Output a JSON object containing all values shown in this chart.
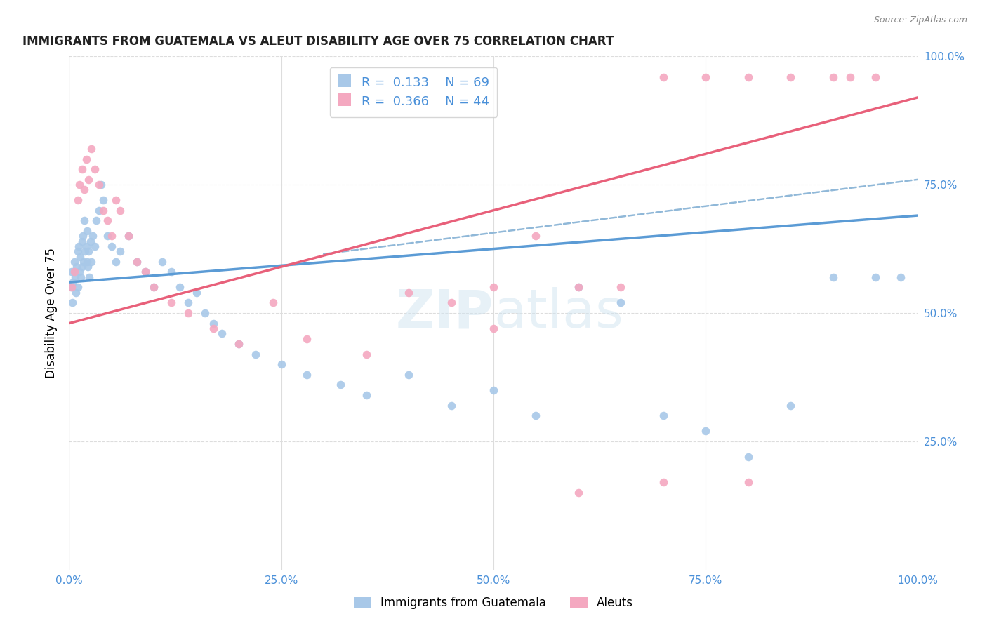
{
  "title": "IMMIGRANTS FROM GUATEMALA VS ALEUT DISABILITY AGE OVER 75 CORRELATION CHART",
  "source": "Source: ZipAtlas.com",
  "ylabel": "Disability Age Over 75",
  "legend_label1": "Immigrants from Guatemala",
  "legend_label2": "Aleuts",
  "r1": "0.133",
  "n1": "69",
  "r2": "0.366",
  "n2": "44",
  "color_blue": "#A8C8E8",
  "color_pink": "#F4A8C0",
  "color_blue_line": "#5B9BD5",
  "color_pink_line": "#E8607A",
  "color_blue_dash": "#90B8D8",
  "watermark_color": "#D0E4F0",
  "blue_x": [
    0.2,
    0.3,
    0.4,
    0.5,
    0.6,
    0.7,
    0.8,
    0.9,
    1.0,
    1.0,
    1.1,
    1.2,
    1.3,
    1.4,
    1.5,
    1.5,
    1.6,
    1.7,
    1.8,
    1.9,
    2.0,
    2.1,
    2.1,
    2.2,
    2.3,
    2.4,
    2.5,
    2.6,
    2.8,
    3.0,
    3.2,
    3.5,
    3.8,
    4.0,
    4.5,
    5.0,
    5.5,
    6.0,
    7.0,
    8.0,
    9.0,
    10.0,
    11.0,
    12.0,
    13.0,
    14.0,
    15.0,
    16.0,
    17.0,
    18.0,
    20.0,
    22.0,
    25.0,
    28.0,
    32.0,
    35.0,
    40.0,
    45.0,
    50.0,
    55.0,
    60.0,
    65.0,
    70.0,
    75.0,
    80.0,
    85.0,
    90.0,
    95.0,
    98.0
  ],
  "blue_y": [
    55,
    58,
    52,
    56,
    60,
    57,
    54,
    59,
    62,
    55,
    63,
    58,
    61,
    57,
    64,
    59,
    65,
    60,
    68,
    62,
    63,
    66,
    60,
    59,
    62,
    57,
    64,
    60,
    65,
    63,
    68,
    70,
    75,
    72,
    65,
    63,
    60,
    62,
    65,
    60,
    58,
    55,
    60,
    58,
    55,
    52,
    54,
    50,
    48,
    46,
    44,
    42,
    40,
    38,
    36,
    34,
    38,
    32,
    35,
    30,
    55,
    52,
    30,
    27,
    22,
    32,
    57,
    57,
    57
  ],
  "pink_x": [
    0.3,
    0.6,
    1.0,
    1.2,
    1.5,
    1.8,
    2.0,
    2.3,
    2.6,
    3.0,
    3.5,
    4.0,
    4.5,
    5.0,
    5.5,
    6.0,
    7.0,
    8.0,
    9.0,
    10.0,
    12.0,
    14.0,
    17.0,
    20.0,
    24.0,
    28.0,
    35.0,
    40.0,
    45.0,
    50.0,
    55.0,
    60.0,
    65.0,
    70.0,
    75.0,
    80.0,
    85.0,
    90.0,
    92.0,
    95.0,
    50.0,
    60.0,
    70.0,
    80.0
  ],
  "pink_y": [
    55,
    58,
    72,
    75,
    78,
    74,
    80,
    76,
    82,
    78,
    75,
    70,
    68,
    65,
    72,
    70,
    65,
    60,
    58,
    55,
    52,
    50,
    47,
    44,
    52,
    45,
    42,
    54,
    52,
    55,
    65,
    55,
    55,
    96,
    96,
    96,
    96,
    96,
    96,
    96,
    47,
    15,
    17,
    17
  ]
}
